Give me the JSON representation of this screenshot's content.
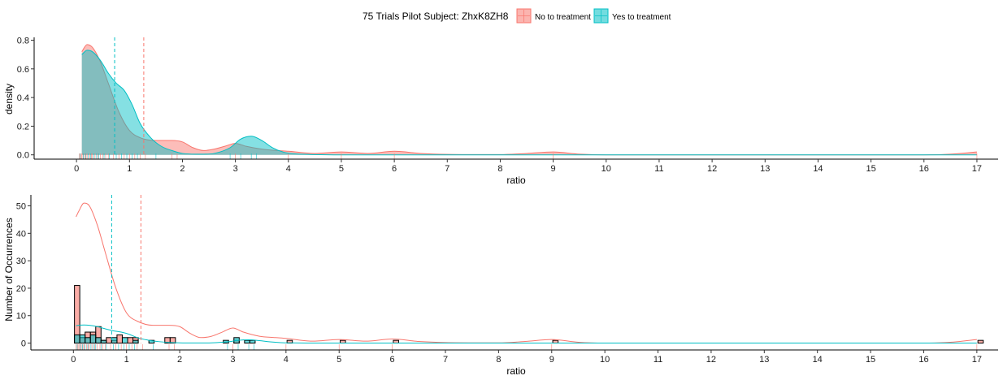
{
  "legend": {
    "title": "75 Trials Pilot Subject:  ZhxK8ZH8",
    "items": [
      {
        "label": "No to treatment",
        "color": "#F8766D"
      },
      {
        "label": "Yes to treatment",
        "color": "#00BFC4"
      }
    ],
    "placement": "top-center"
  },
  "chart_data": [
    {
      "type": "area",
      "xlabel": "ratio",
      "ylabel": "density",
      "xlim": [
        -0.8,
        17.4
      ],
      "ylim": [
        -0.03,
        0.82
      ],
      "xticks": [
        "0",
        "1",
        "2",
        "3",
        "4",
        "5",
        "6",
        "7",
        "8",
        "9",
        "10",
        "11",
        "12",
        "13",
        "14",
        "15",
        "16",
        "17"
      ],
      "yticks": [
        "0.0",
        "0.2",
        "0.4",
        "0.6",
        "0.8"
      ],
      "grid": false,
      "vlines": [
        {
          "series": "No to treatment",
          "x": 1.27
        },
        {
          "series": "Yes to treatment",
          "x": 0.72
        }
      ],
      "series": [
        {
          "name": "No to treatment",
          "color": "#F8766D",
          "x": [
            0.1,
            0.2,
            0.3,
            0.45,
            0.6,
            0.8,
            1.0,
            1.2,
            1.5,
            1.8,
            2.0,
            2.2,
            2.4,
            2.6,
            2.8,
            3.0,
            3.2,
            3.5,
            3.8,
            4.0,
            4.5,
            5.0,
            5.5,
            6.0,
            6.5,
            7.0,
            8.0,
            8.5,
            9.0,
            9.5,
            10,
            12,
            14,
            16,
            16.5,
            17.0
          ],
          "y": [
            0.72,
            0.77,
            0.75,
            0.65,
            0.5,
            0.3,
            0.17,
            0.12,
            0.1,
            0.1,
            0.09,
            0.05,
            0.03,
            0.04,
            0.06,
            0.08,
            0.06,
            0.04,
            0.03,
            0.025,
            0.01,
            0.02,
            0.01,
            0.025,
            0.01,
            0.003,
            0.002,
            0.01,
            0.02,
            0.005,
            0.0,
            0.0,
            0.0,
            0.0,
            0.005,
            0.02
          ]
        },
        {
          "name": "Yes to treatment",
          "color": "#00BFC4",
          "x": [
            0.1,
            0.2,
            0.3,
            0.45,
            0.6,
            0.75,
            0.9,
            1.05,
            1.2,
            1.4,
            1.6,
            1.8,
            2.0,
            2.3,
            2.6,
            2.9,
            3.1,
            3.3,
            3.5,
            3.7,
            3.9,
            4.1,
            4.5,
            5,
            6,
            8,
            10,
            12,
            14,
            16,
            17.0
          ],
          "y": [
            0.7,
            0.73,
            0.72,
            0.66,
            0.57,
            0.5,
            0.45,
            0.35,
            0.22,
            0.12,
            0.06,
            0.03,
            0.01,
            0.005,
            0.01,
            0.05,
            0.11,
            0.13,
            0.1,
            0.05,
            0.02,
            0.008,
            0.002,
            0.0,
            0.0,
            0.0,
            0.0,
            0.0,
            0.0,
            0.0,
            0.0
          ]
        }
      ]
    },
    {
      "type": "bar",
      "xlabel": "ratio",
      "ylabel": "Number of Occurrences",
      "xlim": [
        -0.8,
        17.4
      ],
      "ylim": [
        -2.5,
        54
      ],
      "xticks": [
        "0",
        "1",
        "2",
        "3",
        "4",
        "5",
        "6",
        "7",
        "8",
        "9",
        "10",
        "11",
        "12",
        "13",
        "14",
        "15",
        "16",
        "17"
      ],
      "yticks": [
        "0",
        "10",
        "20",
        "30",
        "40",
        "50"
      ],
      "grid": false,
      "vlines": [
        {
          "series": "No to treatment",
          "x": 1.27
        },
        {
          "series": "Yes to treatment",
          "x": 0.72
        }
      ],
      "bars": [
        {
          "series": "No to treatment",
          "x": 0.07,
          "value": 21
        },
        {
          "series": "No to treatment",
          "x": 0.17,
          "value": 2
        },
        {
          "series": "No to treatment",
          "x": 0.27,
          "value": 4
        },
        {
          "series": "No to treatment",
          "x": 0.37,
          "value": 4
        },
        {
          "series": "No to treatment",
          "x": 0.47,
          "value": 6
        },
        {
          "series": "No to treatment",
          "x": 0.57,
          "value": 1
        },
        {
          "series": "No to treatment",
          "x": 0.67,
          "value": 2
        },
        {
          "series": "No to treatment",
          "x": 0.77,
          "value": 1
        },
        {
          "series": "No to treatment",
          "x": 0.87,
          "value": 3
        },
        {
          "series": "No to treatment",
          "x": 1.07,
          "value": 2
        },
        {
          "series": "No to treatment",
          "x": 1.17,
          "value": 2
        },
        {
          "series": "No to treatment",
          "x": 1.77,
          "value": 2
        },
        {
          "series": "No to treatment",
          "x": 1.87,
          "value": 2
        },
        {
          "series": "No to treatment",
          "x": 3.07,
          "value": 1
        },
        {
          "series": "No to treatment",
          "x": 4.07,
          "value": 1
        },
        {
          "series": "No to treatment",
          "x": 5.07,
          "value": 1
        },
        {
          "series": "No to treatment",
          "x": 6.07,
          "value": 1
        },
        {
          "series": "No to treatment",
          "x": 9.07,
          "value": 1
        },
        {
          "series": "No to treatment",
          "x": 17.07,
          "value": 1
        },
        {
          "series": "Yes to treatment",
          "x": 0.07,
          "value": 3
        },
        {
          "series": "Yes to treatment",
          "x": 0.17,
          "value": 3
        },
        {
          "series": "Yes to treatment",
          "x": 0.27,
          "value": 2
        },
        {
          "series": "Yes to treatment",
          "x": 0.37,
          "value": 3
        },
        {
          "series": "Yes to treatment",
          "x": 0.47,
          "value": 2
        },
        {
          "series": "Yes to treatment",
          "x": 0.57,
          "value": 1
        },
        {
          "series": "Yes to treatment",
          "x": 0.77,
          "value": 2
        },
        {
          "series": "Yes to treatment",
          "x": 0.97,
          "value": 2
        },
        {
          "series": "Yes to treatment",
          "x": 1.17,
          "value": 1
        },
        {
          "series": "Yes to treatment",
          "x": 1.47,
          "value": 1
        },
        {
          "series": "Yes to treatment",
          "x": 2.87,
          "value": 1
        },
        {
          "series": "Yes to treatment",
          "x": 3.07,
          "value": 2
        },
        {
          "series": "Yes to treatment",
          "x": 3.27,
          "value": 1
        },
        {
          "series": "Yes to treatment",
          "x": 3.37,
          "value": 1
        }
      ],
      "series": [
        {
          "name": "No to treatment",
          "color": "#F8766D",
          "x": [
            0.05,
            0.1,
            0.2,
            0.3,
            0.45,
            0.6,
            0.8,
            1.0,
            1.2,
            1.5,
            1.8,
            2.0,
            2.2,
            2.4,
            2.6,
            2.8,
            3.0,
            3.2,
            3.5,
            3.8,
            4.0,
            4.5,
            5.0,
            5.5,
            6.0,
            6.5,
            7.0,
            8.0,
            8.5,
            9.0,
            9.5,
            10,
            12,
            14,
            16,
            16.5,
            17.0
          ],
          "y": [
            46,
            48,
            51,
            50,
            43,
            33,
            20,
            11,
            8,
            6.5,
            6.5,
            6,
            3.5,
            2,
            2.5,
            4,
            5.5,
            4,
            2.5,
            2,
            1.7,
            0.7,
            1.3,
            0.7,
            1.5,
            0.6,
            0.2,
            0.1,
            0.6,
            1.3,
            0.3,
            0,
            0,
            0,
            0,
            0.3,
            1.3
          ]
        },
        {
          "name": "Yes to treatment",
          "color": "#00BFC4",
          "x": [
            0.05,
            0.1,
            0.2,
            0.3,
            0.45,
            0.6,
            0.75,
            0.9,
            1.05,
            1.2,
            1.4,
            1.6,
            1.8,
            2.0,
            2.3,
            2.6,
            2.9,
            3.1,
            3.3,
            3.5,
            3.7,
            3.9,
            4.1,
            4.5,
            5,
            6,
            8,
            10,
            12,
            14,
            16,
            17.0
          ],
          "y": [
            6.3,
            6.5,
            6.6,
            6.5,
            6.0,
            5.2,
            4.5,
            4.0,
            3.2,
            2.0,
            1.1,
            0.55,
            0.25,
            0.1,
            0.05,
            0.1,
            0.45,
            1.0,
            1.2,
            0.9,
            0.45,
            0.18,
            0.07,
            0.02,
            0,
            0,
            0,
            0,
            0,
            0,
            0,
            0
          ]
        }
      ]
    }
  ],
  "rug": {
    "no": [
      0.05,
      0.08,
      0.1,
      0.12,
      0.15,
      0.18,
      0.2,
      0.25,
      0.28,
      0.3,
      0.35,
      0.4,
      0.45,
      0.5,
      0.55,
      0.6,
      0.7,
      0.8,
      0.9,
      1.0,
      1.1,
      1.2,
      1.3,
      1.8,
      1.9,
      3.0,
      4.0,
      5.0,
      6.0,
      9.0,
      17.0
    ],
    "yes": [
      0.07,
      0.13,
      0.17,
      0.22,
      0.27,
      0.33,
      0.38,
      0.42,
      0.52,
      0.62,
      0.75,
      0.85,
      0.95,
      1.05,
      1.15,
      1.5,
      2.9,
      3.1,
      3.3,
      3.4
    ]
  }
}
